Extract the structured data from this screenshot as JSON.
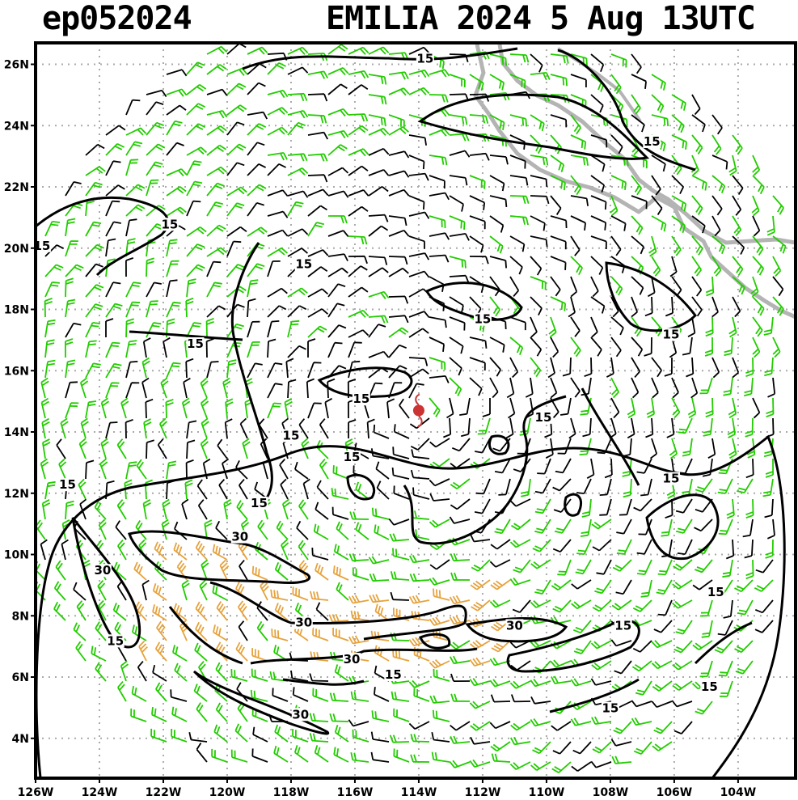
{
  "header": {
    "storm_id": "ep052024",
    "title": "EMILIA 2024   5 Aug 13UTC"
  },
  "map": {
    "projection": "lat-lon",
    "lon_range": [
      -126,
      -102.2
    ],
    "lat_range": [
      2.7,
      26.7
    ],
    "grid": true,
    "lat_ticks": [
      "4N",
      "6N",
      "8N",
      "10N",
      "12N",
      "14N",
      "16N",
      "18N",
      "20N",
      "22N",
      "24N",
      "26N"
    ],
    "lon_ticks": [
      "126W",
      "124W",
      "122W",
      "120W",
      "118W",
      "116W",
      "114W",
      "112W",
      "110W",
      "108W",
      "106W",
      "104W"
    ],
    "storm_center": {
      "lon": -114.0,
      "lat": 14.7
    },
    "contour_labels": [
      {
        "text": "15",
        "lon": -113.8,
        "lat": 26.1
      },
      {
        "text": "15",
        "lon": -106.7,
        "lat": 23.4
      },
      {
        "text": "15",
        "lon": -121.8,
        "lat": 20.7
      },
      {
        "text": "15",
        "lon": -125.8,
        "lat": 20.0
      },
      {
        "text": "15",
        "lon": -117.6,
        "lat": 19.4
      },
      {
        "text": "15",
        "lon": -112.0,
        "lat": 17.6
      },
      {
        "text": "15",
        "lon": -106.1,
        "lat": 17.1
      },
      {
        "text": "15",
        "lon": -121.0,
        "lat": 16.8
      },
      {
        "text": "15",
        "lon": -115.8,
        "lat": 15.0
      },
      {
        "text": "15",
        "lon": -110.1,
        "lat": 14.4
      },
      {
        "text": "15",
        "lon": -118.0,
        "lat": 13.8
      },
      {
        "text": "15",
        "lon": -116.1,
        "lat": 13.1
      },
      {
        "text": "15",
        "lon": -125.0,
        "lat": 12.2
      },
      {
        "text": "15",
        "lon": -106.1,
        "lat": 12.4
      },
      {
        "text": "15",
        "lon": -119.0,
        "lat": 11.6
      },
      {
        "text": "30",
        "lon": -119.6,
        "lat": 10.5
      },
      {
        "text": "30",
        "lon": -123.9,
        "lat": 9.4
      },
      {
        "text": "15",
        "lon": -104.7,
        "lat": 8.7
      },
      {
        "text": "15",
        "lon": -107.6,
        "lat": 7.6
      },
      {
        "text": "30",
        "lon": -117.6,
        "lat": 7.7
      },
      {
        "text": "30",
        "lon": -111.0,
        "lat": 7.6
      },
      {
        "text": "15",
        "lon": -123.5,
        "lat": 7.1
      },
      {
        "text": "30",
        "lon": -116.1,
        "lat": 6.5
      },
      {
        "text": "15",
        "lon": -114.8,
        "lat": 6.0
      },
      {
        "text": "15",
        "lon": -104.9,
        "lat": 5.6
      },
      {
        "text": "15",
        "lon": -108.0,
        "lat": 4.9
      },
      {
        "text": "30",
        "lon": -117.7,
        "lat": 4.7
      }
    ],
    "colors": {
      "weak_barb": "#000000",
      "moderate_barb": "#22cc00",
      "strong_barb": "#e6a23c",
      "coastline": "#b4b4b4",
      "grid": "#aaaaaa",
      "contour": "#000000",
      "storm_symbol": "#cc3333"
    }
  }
}
